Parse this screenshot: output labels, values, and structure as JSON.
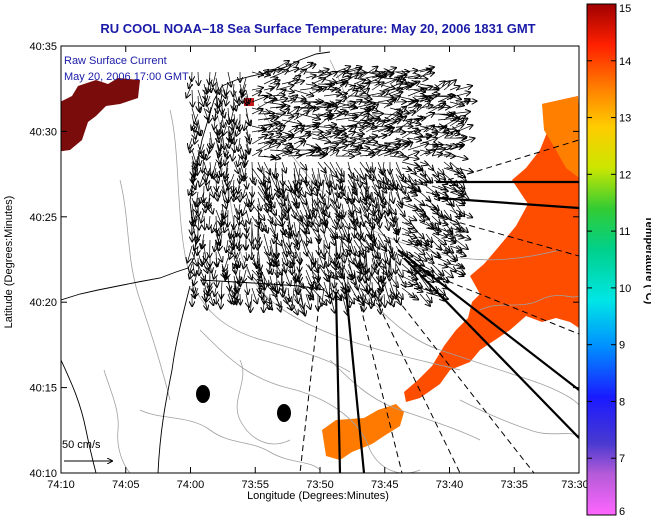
{
  "title": "RU COOL  NOAA–18  Sea Surface Temperature:  May 20, 2006 1831 GMT",
  "legend": {
    "line1": "Raw Surface Current",
    "line2": "May 20, 2006 17:00 GMT"
  },
  "x_axis": {
    "label": "Longitude (Degrees:Minutes)",
    "ticks": [
      "74:10",
      "74:05",
      "74:00",
      "73:55",
      "73:50",
      "73:45",
      "73:40",
      "73:35",
      "73:30"
    ]
  },
  "y_axis": {
    "label": "Latitude (Degrees:Minutes)",
    "ticks": [
      "40:35",
      "40:30",
      "40:25",
      "40:20",
      "40:15",
      "40:10"
    ]
  },
  "colorbar": {
    "label": "Temperature (°C)",
    "ticks": [
      "15",
      "14",
      "13",
      "12",
      "11",
      "10",
      "9",
      "8",
      "7",
      "6"
    ],
    "min": 6,
    "max": 15
  },
  "scale_bar": {
    "label": "50 cm/s"
  },
  "colors": {
    "title": "#1a1aa8",
    "sst_warm_patch": "#ff4d00",
    "sst_orange": "#ff7a00",
    "sst_hot": "#8b0000",
    "land_outline": "#000000",
    "bathymetry": "#a0a0a0"
  }
}
